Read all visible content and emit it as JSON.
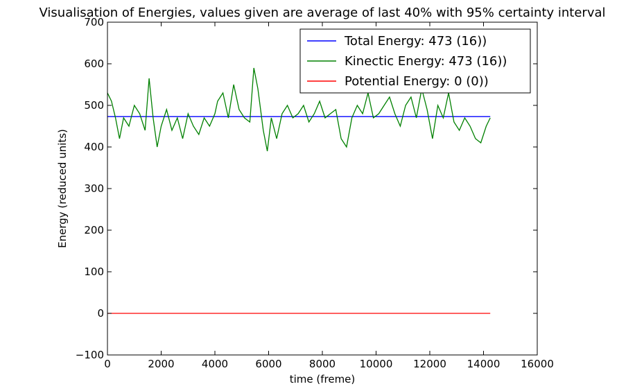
{
  "chart_data": {
    "type": "line",
    "title": "Visualisation of Energies, values given are average of last 40% with 95% certainty interval",
    "xlabel": "time (freme)",
    "ylabel": "Energy (reduced units)",
    "xlim": [
      0,
      16000
    ],
    "ylim": [
      -100,
      700
    ],
    "xticks": [
      0,
      2000,
      4000,
      6000,
      8000,
      10000,
      12000,
      14000,
      16000
    ],
    "yticks": [
      -100,
      0,
      100,
      200,
      300,
      400,
      500,
      600,
      700
    ],
    "xtick_labels": [
      "0",
      "2000",
      "4000",
      "6000",
      "8000",
      "10000",
      "12000",
      "14000",
      "16000"
    ],
    "ytick_labels": [
      "−100",
      "0",
      "100",
      "200",
      "300",
      "400",
      "500",
      "600",
      "700"
    ],
    "grid": false,
    "legend_position": "top-right",
    "series": [
      {
        "name": "Total Energy: 473 (16))",
        "color": "#0000ff",
        "x": [
          0,
          14250
        ],
        "y": [
          473,
          473
        ]
      },
      {
        "name": "Kinectic Energy: 473 (16))",
        "color": "#008000",
        "x": [
          0,
          150,
          300,
          450,
          600,
          800,
          1000,
          1200,
          1400,
          1550,
          1700,
          1850,
          2000,
          2200,
          2400,
          2600,
          2800,
          3000,
          3200,
          3400,
          3600,
          3800,
          4000,
          4100,
          4300,
          4500,
          4700,
          4900,
          5100,
          5300,
          5450,
          5600,
          5800,
          5950,
          6100,
          6300,
          6500,
          6700,
          6900,
          7100,
          7300,
          7500,
          7700,
          7900,
          8100,
          8300,
          8500,
          8700,
          8900,
          9100,
          9300,
          9500,
          9700,
          9900,
          10100,
          10300,
          10500,
          10700,
          10900,
          11100,
          11300,
          11500,
          11700,
          11900,
          12100,
          12300,
          12500,
          12700,
          12900,
          13100,
          13300,
          13500,
          13700,
          13900,
          14100,
          14250
        ],
        "y": [
          530,
          510,
          470,
          420,
          470,
          450,
          500,
          480,
          440,
          565,
          470,
          400,
          450,
          490,
          440,
          470,
          420,
          480,
          450,
          430,
          470,
          450,
          480,
          510,
          530,
          470,
          550,
          490,
          470,
          460,
          590,
          540,
          440,
          390,
          470,
          420,
          480,
          500,
          470,
          480,
          500,
          460,
          480,
          510,
          470,
          480,
          490,
          420,
          400,
          470,
          500,
          480,
          530,
          470,
          480,
          500,
          520,
          480,
          450,
          500,
          520,
          470,
          540,
          490,
          420,
          500,
          470,
          530,
          460,
          440,
          470,
          450,
          420,
          410,
          450,
          470
        ]
      },
      {
        "name": "Potential Energy: 0 (0))",
        "color": "#ff0000",
        "x": [
          0,
          14250
        ],
        "y": [
          0,
          0
        ]
      }
    ]
  }
}
